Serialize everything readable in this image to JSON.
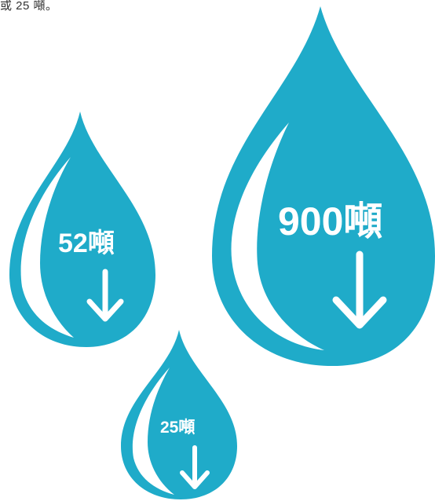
{
  "caption": "或 25 噸。",
  "drop_color": "#1fabc9",
  "drops": [
    {
      "label": "52噸",
      "icon": "down-arrow-icon"
    },
    {
      "label": "900噸",
      "icon": "down-arrow-icon"
    },
    {
      "label": "25噸",
      "icon": "down-arrow-icon"
    }
  ]
}
